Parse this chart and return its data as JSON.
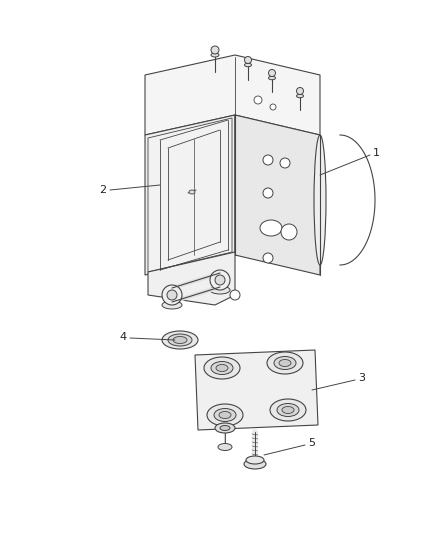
{
  "bg_color": "#ffffff",
  "lc": "#444444",
  "lw": 0.8,
  "fill_light": "#f0f0f0",
  "fill_mid": "#e0e0e0",
  "fill_dark": "#cccccc",
  "label_fontsize": 8,
  "label_color": "#222222"
}
